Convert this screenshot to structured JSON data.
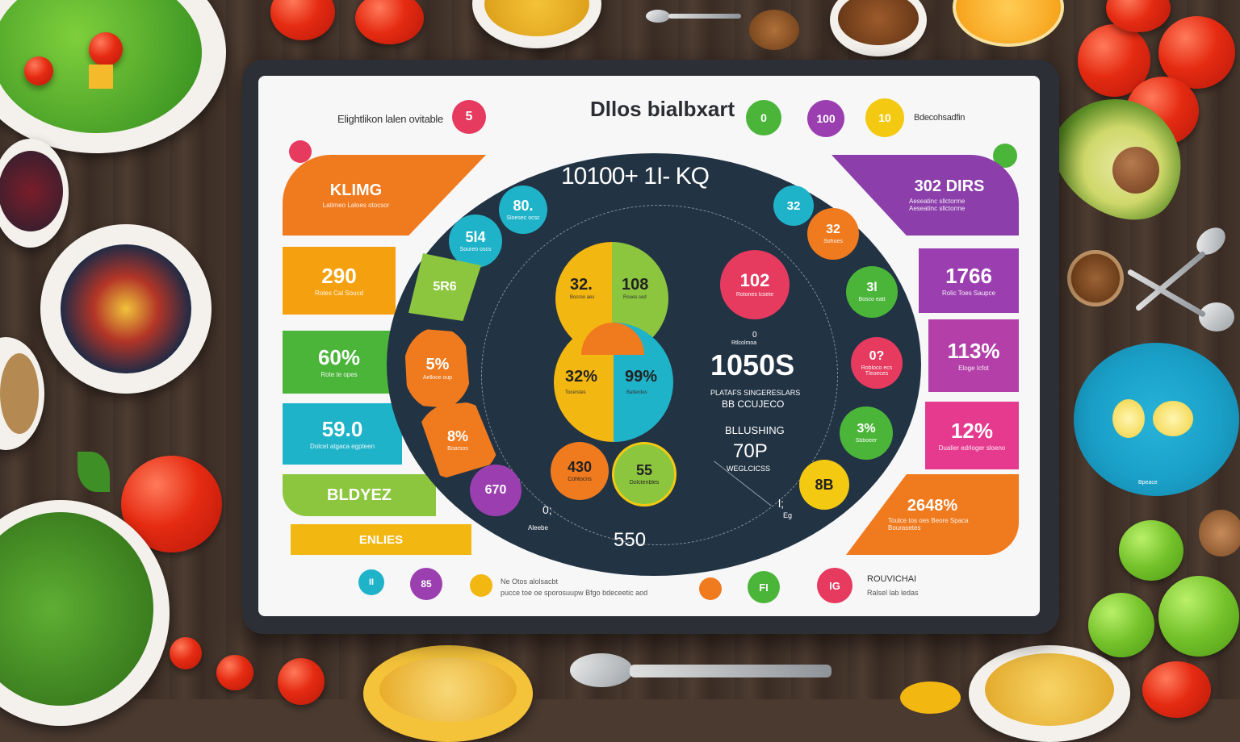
{
  "header": {
    "left_label": "Elightlikon lalen ovitable",
    "left_badge": "5",
    "title": "Dllos bialbxart",
    "badge_1": "0",
    "badge_2": "100",
    "badge_3": "10",
    "right_label": "Bdecohsadfin"
  },
  "left_panels": [
    {
      "value": "KLIMG",
      "sub": "Latimeo Laloes otocsor",
      "color": "#f07a1e"
    },
    {
      "value": "290",
      "sub": "Rotes Cal Soucd",
      "color": "#f5a10f"
    },
    {
      "value": "60%",
      "sub": "Rote te opes",
      "color": "#4bb53a"
    },
    {
      "value": "59.0",
      "sub": "Dolcet atgaca egpteen",
      "color": "#1fb3c9"
    },
    {
      "value": "BLDYEZ",
      "sub": "",
      "color": "#8cc63f"
    },
    {
      "value": "ENLIES",
      "sub": "",
      "color": "#f3b711"
    }
  ],
  "right_panels": [
    {
      "value": "302 DIRS",
      "sub": "Aeseatinc sllctorme Aeseatinc sllctorme",
      "color": "#8c3fab"
    },
    {
      "value": "1766",
      "sub": "Rolic Toes Saupce",
      "color": "#9b3fb0"
    },
    {
      "value": "113%",
      "sub": "Eloge Icfot",
      "color": "#b43fa8"
    },
    {
      "value": "12%",
      "sub": "Dualier edrloger sloeno",
      "color": "#e63a8f"
    },
    {
      "value": "2648%",
      "sub": "Toulce tos oes Beore Spaca Bourasetes",
      "color": "#f07a1e"
    }
  ],
  "oval": {
    "title": "10100+ 1I- KQ",
    "top_left_circles": [
      {
        "value": "80.",
        "sub": "Sloesec ocsc",
        "color": "#1fb3c9"
      },
      {
        "value": "5l4",
        "sub": "Soureo oscs",
        "color": "#1fb3c9"
      }
    ],
    "arc_segments": [
      {
        "value": "5R6",
        "color": "#8cc63f"
      },
      {
        "value": "5%",
        "sub": "Aelkice oup",
        "color": "#f07a1e"
      },
      {
        "value": "8%",
        "sub": "Boarsos",
        "color": "#f07a1e"
      }
    ],
    "pie_top_left": {
      "value": "32.",
      "sub": "Bocroo aes"
    },
    "pie_top_right": {
      "value": "108",
      "sub": "Roues sed"
    },
    "pie_bottom_left": {
      "value": "32%",
      "sub": "Tocerstes"
    },
    "pie_bottom_right": {
      "value": "99%",
      "sub": "Batterdes"
    },
    "small_circle_1": {
      "value": "430",
      "sub": "Cohtocns"
    },
    "small_circle_2": {
      "value": "55",
      "sub": "Dolctenbles"
    },
    "purple_circle": "670",
    "pink_circle": {
      "value": "102",
      "sub": "Rotones lcsete"
    },
    "center_small": "0",
    "center_caption": "Rtlcolmoa",
    "center_number": "1050S",
    "center_line_1": "PLATAFS SINGERESLARS",
    "center_line_2": "BB CCUJECO",
    "blushing": "BLLUSHING",
    "top_value": "70P",
    "top_caption": "WEGLCICSS",
    "bottom_left_a": "0;",
    "bottom_left_b": "Aleebe",
    "bottom_value": "550",
    "right_marker": "l;",
    "right_marker_sub": "Eg",
    "right_circles": [
      {
        "value": "32",
        "color": "#1fb3c9"
      },
      {
        "value": "32",
        "sub": "Sohoes",
        "color": "#f07a1e"
      },
      {
        "value": "3l",
        "sub": "Bosco eatt",
        "color": "#4bb53a"
      },
      {
        "value": "0?",
        "sub": "Robloco ecs Tleoeces",
        "color": "#e63a5f"
      },
      {
        "value": "3%",
        "sub": "Sbboeer",
        "color": "#4bb53a"
      },
      {
        "value": "8B",
        "color": "#f3c911"
      }
    ]
  },
  "footer": {
    "badge_a": "II",
    "badge_b": "85",
    "text_1": "Ne Otos alolsacbt",
    "text_2": "pucce toe oe sporosuupw Bfgo bdeceetic aod",
    "badge_c": "FI",
    "badge_d": "IG",
    "right_title": "ROUVICHAI",
    "right_sub": "Ralsel lab ledas"
  },
  "colors": {
    "orange": "#f07a1e",
    "green": "#4bb53a",
    "teal": "#1fb3c9",
    "purple": "#8c3fab",
    "pink": "#e63a5f",
    "yellow": "#f3c911",
    "navy": "#223344"
  }
}
